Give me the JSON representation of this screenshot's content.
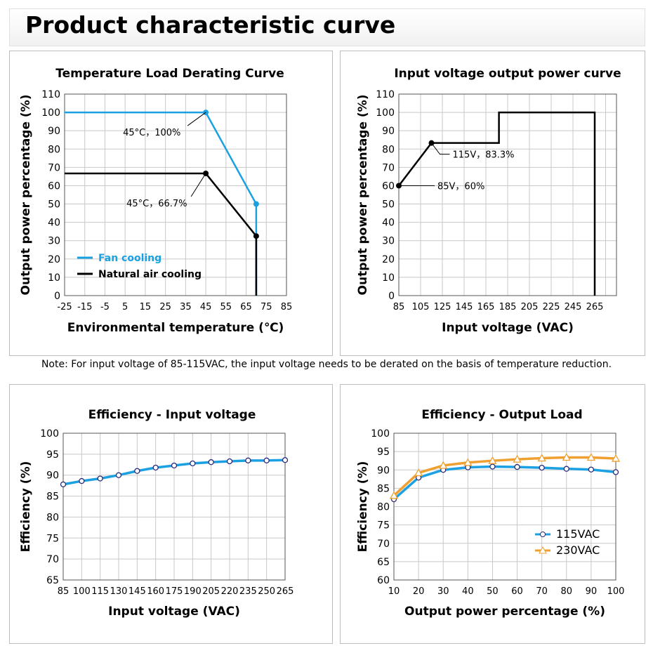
{
  "title": "Product characteristic curve",
  "note": "Note: For input voltage of 85-115VAC, the input voltage needs to be derated on the basis of temperature reduction.",
  "colors": {
    "blue": "#1ba1e2",
    "black": "#000000",
    "orange": "#f0a030",
    "marker": "#2a2a7a"
  },
  "chart_data": [
    {
      "type": "line",
      "title": "Temperature Load Derating Curve",
      "xlabel": "Environmental temperature (℃)",
      "ylabel": "Output power percentage (%)",
      "xlim": [
        -25,
        85
      ],
      "ylim": [
        0,
        110
      ],
      "xticks": [
        -25,
        -15,
        -5,
        5,
        15,
        25,
        35,
        45,
        55,
        65,
        75,
        85
      ],
      "yticks": [
        0,
        10,
        20,
        30,
        40,
        50,
        60,
        70,
        80,
        90,
        100,
        110
      ],
      "series": [
        {
          "name": "Fan cooling",
          "color": "#1ba1e2",
          "x": [
            -25,
            45,
            70,
            70
          ],
          "y": [
            100,
            100,
            50,
            0
          ],
          "markers": [
            1,
            2
          ]
        },
        {
          "name": "Natural air cooling",
          "color": "#000000",
          "x": [
            -25,
            45,
            70,
            70
          ],
          "y": [
            66.7,
            66.7,
            32.5,
            0
          ],
          "markers": [
            1,
            2
          ]
        }
      ],
      "annotations": [
        {
          "text": "45°C，100%",
          "x": 45,
          "y": 100
        },
        {
          "text": "45°C，66.7%",
          "x": 45,
          "y": 66.7
        }
      ],
      "legend": "bottom-left"
    },
    {
      "type": "line",
      "title": "Input voltage output power curve",
      "xlabel": "Input voltage (VAC)",
      "ylabel": "Output power percentage (%)",
      "xlim": [
        85,
        285
      ],
      "ylim": [
        0,
        110
      ],
      "xticks": [
        85,
        105,
        125,
        145,
        165,
        185,
        205,
        225,
        245,
        265
      ],
      "yticks": [
        0,
        10,
        20,
        30,
        40,
        50,
        60,
        70,
        80,
        90,
        100,
        110
      ],
      "series": [
        {
          "name": "",
          "color": "#000000",
          "x": [
            85,
            115,
            177,
            177,
            265,
            265
          ],
          "y": [
            60,
            83.3,
            83.3,
            100,
            100,
            0
          ],
          "markers": [
            0,
            1
          ]
        }
      ],
      "annotations": [
        {
          "text": "115V，83.3%",
          "x": 115,
          "y": 83.3
        },
        {
          "text": "85V，60%",
          "x": 85,
          "y": 60
        }
      ]
    },
    {
      "type": "line",
      "title": "Efficiency - Input voltage",
      "xlabel": "Input voltage (VAC)",
      "ylabel": "Efficiency (%)",
      "xlim": [
        85,
        265
      ],
      "ylim": [
        65,
        100
      ],
      "xticks": [
        85,
        100,
        115,
        130,
        145,
        160,
        175,
        190,
        205,
        220,
        235,
        250,
        265
      ],
      "yticks": [
        65,
        70,
        75,
        80,
        85,
        90,
        95,
        100
      ],
      "series": [
        {
          "name": "",
          "color": "#1ba1e2",
          "marker": "circle",
          "x": [
            85,
            100,
            115,
            130,
            145,
            160,
            175,
            190,
            205,
            220,
            235,
            250,
            265
          ],
          "y": [
            87.8,
            88.6,
            89.2,
            90.0,
            91.0,
            91.8,
            92.3,
            92.8,
            93.1,
            93.3,
            93.5,
            93.5,
            93.6
          ]
        }
      ]
    },
    {
      "type": "line",
      "title": "Efficiency - Output Load",
      "xlabel": "Output power percentage (%)",
      "ylabel": "Efficiency (%)",
      "xlim": [
        10,
        100
      ],
      "ylim": [
        60,
        100
      ],
      "xticks": [
        10,
        20,
        30,
        40,
        50,
        60,
        70,
        80,
        90,
        100
      ],
      "yticks": [
        60,
        65,
        70,
        75,
        80,
        85,
        90,
        95,
        100
      ],
      "series": [
        {
          "name": "115VAC",
          "color": "#1ba1e2",
          "marker": "circle",
          "x": [
            10,
            20,
            30,
            40,
            50,
            60,
            70,
            80,
            90,
            100
          ],
          "y": [
            82,
            87.9,
            90,
            90.7,
            90.9,
            90.8,
            90.6,
            90.3,
            90.1,
            89.4
          ]
        },
        {
          "name": "230VAC",
          "color": "#f0a030",
          "marker": "triangle",
          "x": [
            10,
            20,
            30,
            40,
            50,
            60,
            70,
            80,
            90,
            100
          ],
          "y": [
            83,
            89.2,
            91.2,
            92,
            92.5,
            92.9,
            93.2,
            93.4,
            93.4,
            93.1
          ]
        }
      ],
      "legend": "bottom-right"
    }
  ]
}
